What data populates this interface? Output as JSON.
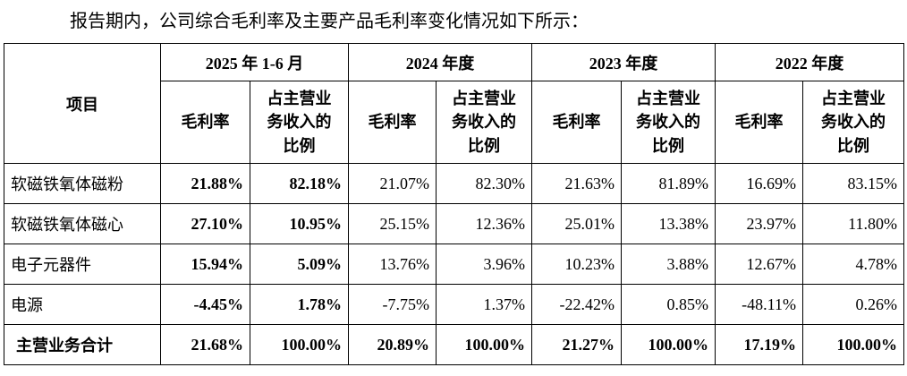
{
  "title": "报告期内，公司综合毛利率及主要产品毛利率变化情况如下所示：",
  "table": {
    "item_header": "项目",
    "periods": [
      "2025 年 1-6 月",
      "2024 年度",
      "2023 年度",
      "2022 年度"
    ],
    "sub_headers": {
      "margin": "毛利率",
      "ratio": "占主营业\n务收入的\n比例"
    },
    "rows": [
      {
        "item": "软磁铁氧体磁粉",
        "is_total": false,
        "values": [
          "21.88%",
          "82.18%",
          "21.07%",
          "82.30%",
          "21.63%",
          "81.89%",
          "16.69%",
          "83.15%"
        ]
      },
      {
        "item": "软磁铁氧体磁心",
        "is_total": false,
        "values": [
          "27.10%",
          "10.95%",
          "25.15%",
          "12.36%",
          "25.01%",
          "13.38%",
          "23.97%",
          "11.80%"
        ]
      },
      {
        "item": "电子元器件",
        "is_total": false,
        "values": [
          "15.94%",
          "5.09%",
          "13.76%",
          "3.96%",
          "10.23%",
          "3.88%",
          "12.67%",
          "4.78%"
        ]
      },
      {
        "item": "电源",
        "is_total": false,
        "values": [
          "-4.45%",
          "1.78%",
          "-7.75%",
          "1.37%",
          "-22.42%",
          "0.85%",
          "-48.11%",
          "0.26%"
        ]
      },
      {
        "item": "主营业务合计",
        "is_total": true,
        "values": [
          "21.68%",
          "100.00%",
          "20.89%",
          "100.00%",
          "21.27%",
          "100.00%",
          "17.19%",
          "100.00%"
        ]
      }
    ]
  }
}
